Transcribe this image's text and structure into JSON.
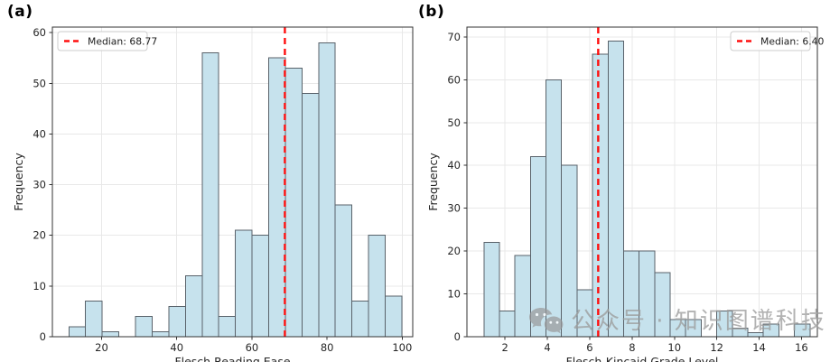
{
  "style": {
    "bar_fill": "#c6e2ed",
    "bar_edge": "#59626a",
    "median_color": "#ff0f0f",
    "grid_color": "#e8e8e8",
    "spine_color": "#333333",
    "text_color": "#262626",
    "legend_border": "#cccccc",
    "legend_bg": "#ffffff",
    "watermark_color": "#9d9d9d"
  },
  "panels": {
    "a": {
      "label": "(a)"
    },
    "b": {
      "label": "(b)"
    }
  },
  "watermark": {
    "icon": "wechat-icon",
    "text": "公众号 · 知识图谱科技"
  },
  "chart_data": [
    {
      "type": "histogram",
      "panel": "(a)",
      "xlabel": "Flesch Reading Ease",
      "ylabel": "Frequency",
      "bin_start": 11.3,
      "bin_width": 4.43,
      "heights": [
        2,
        7,
        1,
        0,
        4,
        1,
        6,
        12,
        56,
        4,
        21,
        20,
        55,
        53,
        48,
        58,
        26,
        7,
        20,
        8
      ],
      "xticks": [
        20,
        40,
        60,
        80,
        100
      ],
      "yticks": [
        0,
        10,
        20,
        30,
        40,
        50,
        60
      ],
      "xlim": [
        6.9,
        102.8
      ],
      "ylim": [
        0,
        61.1
      ],
      "median": 68.77,
      "legend_label": "Median: 68.77",
      "legend_side": "left",
      "grid": true
    },
    {
      "type": "histogram",
      "panel": "(b)",
      "xlabel": "Flesch-Kincaid Grade Level",
      "ylabel": "Frequency",
      "bin_start": 1.0,
      "bin_width": 0.7333,
      "heights": [
        22,
        6,
        19,
        42,
        60,
        40,
        11,
        66,
        69,
        20,
        20,
        15,
        4,
        4,
        0,
        6,
        2,
        1,
        3,
        0,
        3
      ],
      "xticks": [
        2,
        4,
        6,
        8,
        10,
        12,
        14,
        16
      ],
      "yticks": [
        0,
        10,
        20,
        30,
        40,
        50,
        60,
        70
      ],
      "xlim": [
        0.2,
        16.75
      ],
      "ylim": [
        0,
        72.3
      ],
      "median": 6.4,
      "legend_label": "Median: 6.40",
      "legend_side": "right",
      "grid": true
    }
  ]
}
